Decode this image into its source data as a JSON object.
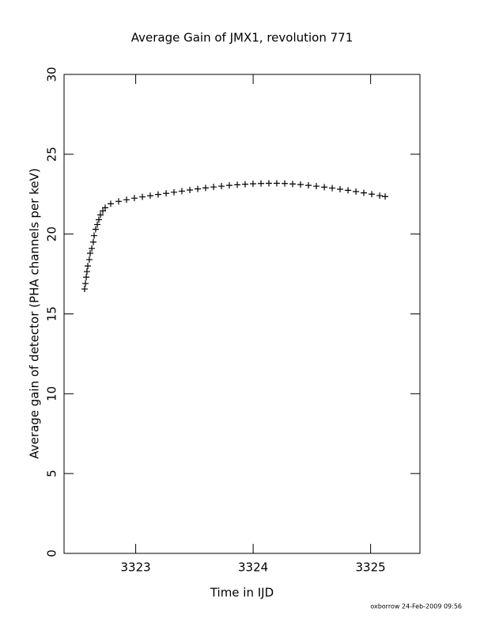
{
  "chart_data": {
    "type": "scatter",
    "title": "Average Gain of JMX1, revolution 771",
    "x_label": "Time in IJD",
    "y_label": "Average gain of detector (PHA channels per keV)",
    "footer": "oxborrow 24-Feb-2009 09:56",
    "marker": "+",
    "color": "#000000",
    "x": [
      3322.565,
      3322.572,
      3322.579,
      3322.585,
      3322.592,
      3322.605,
      3322.612,
      3322.626,
      3322.639,
      3322.646,
      3322.659,
      3322.673,
      3322.686,
      3322.7,
      3322.72,
      3322.74,
      3322.787,
      3322.855,
      3322.922,
      3322.989,
      3323.057,
      3323.124,
      3323.191,
      3323.259,
      3323.326,
      3323.393,
      3323.461,
      3323.528,
      3323.595,
      3323.663,
      3323.73,
      3323.797,
      3323.865,
      3323.932,
      3323.999,
      3324.067,
      3324.134,
      3324.201,
      3324.269,
      3324.336,
      3324.403,
      3324.471,
      3324.538,
      3324.606,
      3324.673,
      3324.74,
      3324.808,
      3324.875,
      3324.942,
      3325.01,
      3325.077,
      3325.124
    ],
    "values": [
      16.56,
      16.9,
      17.3,
      17.65,
      18.0,
      18.4,
      18.8,
      19.1,
      19.5,
      19.9,
      20.3,
      20.6,
      20.9,
      21.2,
      21.45,
      21.65,
      21.9,
      22.05,
      22.15,
      22.25,
      22.33,
      22.4,
      22.48,
      22.55,
      22.62,
      22.69,
      22.76,
      22.83,
      22.89,
      22.95,
      23.0,
      23.05,
      23.09,
      23.12,
      23.15,
      23.17,
      23.18,
      23.18,
      23.17,
      23.14,
      23.1,
      23.05,
      23.0,
      22.94,
      22.88,
      22.81,
      22.74,
      22.66,
      22.58,
      22.5,
      22.41,
      22.35
    ],
    "xlim": [
      3322.39,
      3325.42
    ],
    "xticks": [
      3323,
      3324,
      3325
    ],
    "ylim": [
      0,
      30
    ],
    "yticks": [
      0,
      5,
      10,
      15,
      20,
      25,
      30
    ]
  }
}
